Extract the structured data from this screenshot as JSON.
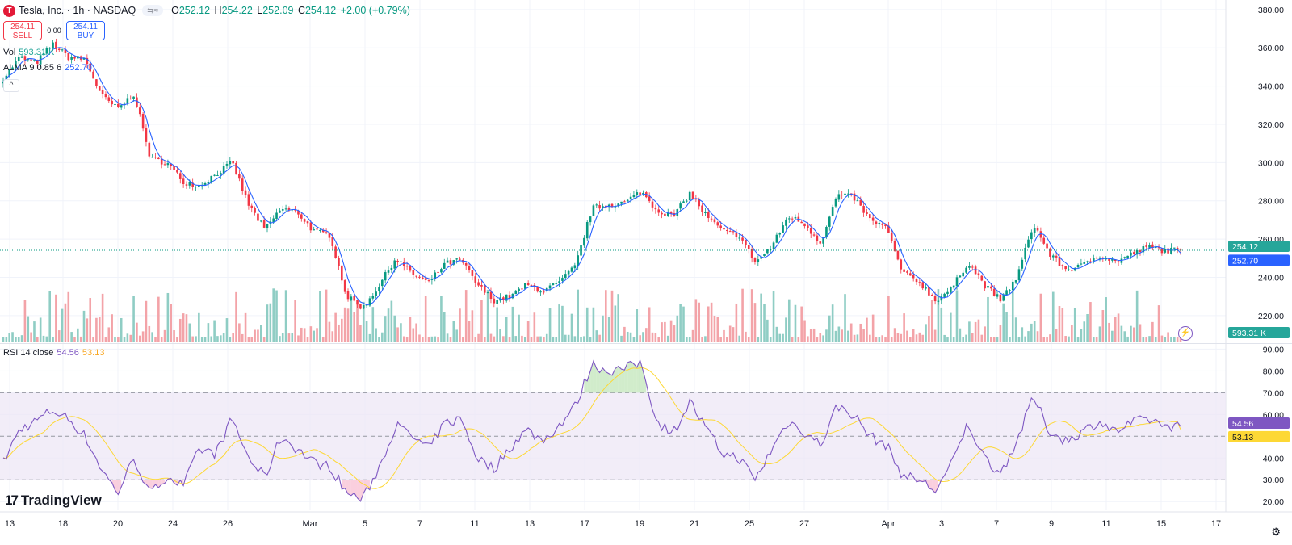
{
  "header": {
    "title": "Tesla, Inc. · 1h · NASDAQ",
    "logo_letter": "T",
    "compare_icon": "≈",
    "ohlc": {
      "o_label": "O",
      "o": "252.12",
      "h_label": "H",
      "h": "254.22",
      "l_label": "L",
      "l": "252.09",
      "c_label": "C",
      "c": "254.12",
      "change": "+2.00 (+0.79%)"
    }
  },
  "trade": {
    "sell_price": "254.11",
    "sell_label": "SELL",
    "spread": "0.00",
    "buy_price": "254.11",
    "buy_label": "BUY"
  },
  "legends": {
    "vol_label": "Vol",
    "vol_value": "593.31 K",
    "alma_label": "ALMA 9 0.85 6",
    "alma_value": "252.70",
    "collapse_icon": "^",
    "rsi_label": "RSI 14 close",
    "rsi_value": "54.56",
    "rsi_ma_value": "53.13"
  },
  "branding": {
    "name": "TradingView",
    "mark": "17"
  },
  "colors": {
    "up": "#089981",
    "down": "#f23645",
    "vol_up": "#8fcdc4",
    "vol_down": "#f3a3a8",
    "alma": "#2962ff",
    "rsi": "#7e57c2",
    "rsi_ma": "#fdd835",
    "rsi_band": "#ede7f6",
    "price_tag": "#26a69a",
    "alma_tag": "#2962ff"
  },
  "chart_data": {
    "type": "candlestick",
    "price_axis": {
      "range": [
        206,
        385
      ],
      "ticks": [
        "380.00",
        "360.00",
        "340.00",
        "320.00",
        "300.00",
        "280.00",
        "260.00",
        "240.00",
        "220.00"
      ],
      "tick_values": [
        380,
        360,
        340,
        320,
        300,
        280,
        260,
        240,
        220
      ],
      "last_price_label": "254.12",
      "last_price": 254.12,
      "alma_label": "252.70",
      "alma_last": 252.7
    },
    "volume": {
      "last_label": "593.31 K"
    },
    "rsi_axis": {
      "range": [
        16,
        92
      ],
      "ticks": [
        "90.00",
        "80.00",
        "70.00",
        "60.00",
        "50.00",
        "40.00",
        "30.00",
        "20.00"
      ],
      "tick_values": [
        90,
        80,
        70,
        60,
        50,
        40,
        30,
        20
      ],
      "upper_band": 70,
      "middle_band": 50,
      "lower_band": 30,
      "rsi_last_label": "54.56",
      "rsi_last": 54.56,
      "ma_last_label": "53.13",
      "ma_last": 53.13
    },
    "time_axis": [
      "13",
      "18",
      "20",
      "24",
      "26",
      "Mar",
      "5",
      "7",
      "11",
      "13",
      "17",
      "19",
      "21",
      "25",
      "27",
      "Apr",
      "3",
      "7",
      "9",
      "11",
      "15",
      "17"
    ],
    "anchors": [
      {
        "price": 344,
        "rsi": 38
      },
      {
        "price": 355,
        "rsi": 53
      },
      {
        "price": 352,
        "rsi": 57
      },
      {
        "price": 362,
        "rsi": 62
      },
      {
        "price": 355,
        "rsi": 58
      },
      {
        "price": 354,
        "rsi": 50
      },
      {
        "price": 335,
        "rsi": 35
      },
      {
        "price": 328,
        "rsi": 24
      },
      {
        "price": 336,
        "rsi": 40
      },
      {
        "price": 302,
        "rsi": 23
      },
      {
        "price": 300,
        "rsi": 32
      },
      {
        "price": 290,
        "rsi": 27
      },
      {
        "price": 288,
        "rsi": 44
      },
      {
        "price": 294,
        "rsi": 42
      },
      {
        "price": 300,
        "rsi": 58
      },
      {
        "price": 278,
        "rsi": 40
      },
      {
        "price": 265,
        "rsi": 31
      },
      {
        "price": 276,
        "rsi": 50
      },
      {
        "price": 274,
        "rsi": 44
      },
      {
        "price": 264,
        "rsi": 38
      },
      {
        "price": 262,
        "rsi": 36
      },
      {
        "price": 230,
        "rsi": 24
      },
      {
        "price": 224,
        "rsi": 21
      },
      {
        "price": 236,
        "rsi": 36
      },
      {
        "price": 250,
        "rsi": 55
      },
      {
        "price": 242,
        "rsi": 50
      },
      {
        "price": 237,
        "rsi": 44
      },
      {
        "price": 247,
        "rsi": 56
      },
      {
        "price": 249,
        "rsi": 58
      },
      {
        "price": 236,
        "rsi": 40
      },
      {
        "price": 228,
        "rsi": 35
      },
      {
        "price": 230,
        "rsi": 45
      },
      {
        "price": 236,
        "rsi": 53
      },
      {
        "price": 233,
        "rsi": 48
      },
      {
        "price": 237,
        "rsi": 55
      },
      {
        "price": 246,
        "rsi": 64
      },
      {
        "price": 276,
        "rsi": 83
      },
      {
        "price": 278,
        "rsi": 80
      },
      {
        "price": 279,
        "rsi": 81
      },
      {
        "price": 285,
        "rsi": 84
      },
      {
        "price": 275,
        "rsi": 56
      },
      {
        "price": 272,
        "rsi": 52
      },
      {
        "price": 284,
        "rsi": 66
      },
      {
        "price": 272,
        "rsi": 53
      },
      {
        "price": 264,
        "rsi": 42
      },
      {
        "price": 262,
        "rsi": 40
      },
      {
        "price": 248,
        "rsi": 30
      },
      {
        "price": 256,
        "rsi": 44
      },
      {
        "price": 272,
        "rsi": 57
      },
      {
        "price": 268,
        "rsi": 52
      },
      {
        "price": 258,
        "rsi": 46
      },
      {
        "price": 283,
        "rsi": 64
      },
      {
        "price": 282,
        "rsi": 60
      },
      {
        "price": 270,
        "rsi": 50
      },
      {
        "price": 266,
        "rsi": 46
      },
      {
        "price": 242,
        "rsi": 32
      },
      {
        "price": 238,
        "rsi": 30
      },
      {
        "price": 228,
        "rsi": 25
      },
      {
        "price": 234,
        "rsi": 37
      },
      {
        "price": 248,
        "rsi": 56
      },
      {
        "price": 236,
        "rsi": 40
      },
      {
        "price": 228,
        "rsi": 33
      },
      {
        "price": 240,
        "rsi": 48
      },
      {
        "price": 268,
        "rsi": 68
      },
      {
        "price": 252,
        "rsi": 52
      },
      {
        "price": 244,
        "rsi": 48
      },
      {
        "price": 246,
        "rsi": 52
      },
      {
        "price": 252,
        "rsi": 57
      },
      {
        "price": 248,
        "rsi": 52
      },
      {
        "price": 252,
        "rsi": 56
      },
      {
        "price": 256,
        "rsi": 58
      },
      {
        "price": 254,
        "rsi": 55
      },
      {
        "price": 254.12,
        "rsi": 54.56
      }
    ]
  }
}
